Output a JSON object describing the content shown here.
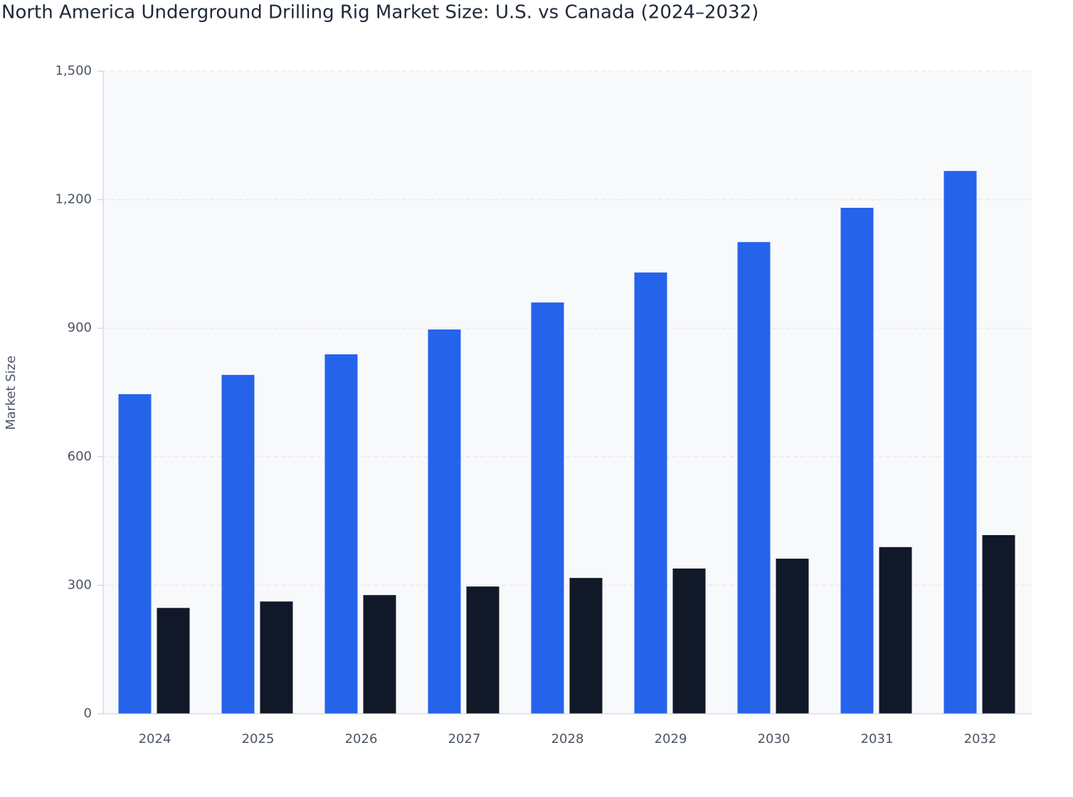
{
  "chart_data": {
    "type": "bar",
    "title": "North America Underground Drilling Rig Market Size: U.S. vs Canada (2024–2032)",
    "y_label": "Market Size",
    "categories": [
      "2024",
      "2025",
      "2026",
      "2027",
      "2028",
      "2029",
      "2030",
      "2031",
      "2032"
    ],
    "series": [
      {
        "color": "#2563eb",
        "values": [
          746,
          791,
          839,
          897,
          960,
          1030,
          1101,
          1181,
          1267
        ]
      },
      {
        "color": "#111827",
        "values": [
          247,
          262,
          277,
          297,
          317,
          339,
          362,
          389,
          417
        ]
      }
    ],
    "ylim": [
      0,
      1500
    ],
    "yticks": [
      0,
      300,
      600,
      900,
      {
        "value": 1200,
        "label": "1,200"
      },
      {
        "value": 1500,
        "label": "1,500"
      }
    ],
    "grid": true
  }
}
